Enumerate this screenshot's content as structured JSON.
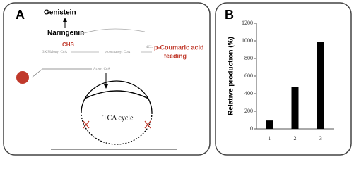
{
  "panel_a": {
    "label": "A",
    "genistein": "Genistein",
    "naringenin": "Naringenin",
    "chs": "CHS",
    "malonyl": "3X Malonyl CoA",
    "coumaroyl": "p-coumaroyl CoA",
    "cl": "4CL",
    "feeding_1": "p-Coumaric acid",
    "feeding_2": "feeding",
    "acetyl": "Acetyl CoA",
    "tca": "TCA cycle"
  },
  "panel_b": {
    "label": "B"
  },
  "chart_data": {
    "type": "bar",
    "ylabel": "Relative production (%)",
    "categories": [
      "1",
      "2",
      "3"
    ],
    "values": [
      95,
      480,
      990
    ],
    "color": "#000000",
    "ylim": [
      0,
      1200
    ],
    "yticks": [
      0,
      200,
      400,
      600,
      800,
      1000,
      1200
    ]
  }
}
